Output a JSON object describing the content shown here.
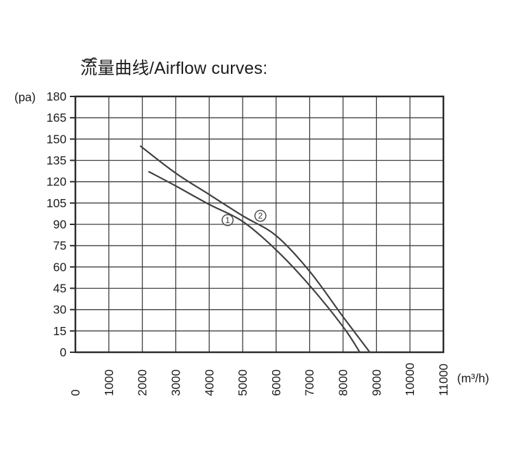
{
  "title": "流量曲线/Airflow curves:",
  "chart_data": {
    "type": "line",
    "title": "流量曲线/Airflow curves:",
    "xlabel": "(m³/h)",
    "ylabel": "(pa)",
    "xlim": [
      0,
      11000
    ],
    "ylim": [
      0,
      180
    ],
    "x_ticks": [
      "0",
      "1000",
      "2000",
      "3000",
      "4000",
      "5000",
      "6000",
      "7000",
      "8000",
      "9000",
      "10000",
      "11000"
    ],
    "y_ticks": [
      "0",
      "15",
      "30",
      "45",
      "60",
      "75",
      "90",
      "105",
      "120",
      "135",
      "150",
      "165",
      "180"
    ],
    "x_tick_rotation": -90,
    "grid": true,
    "legend_position": "none",
    "series": [
      {
        "name": "curve-1",
        "label": "1",
        "label_circled": "①",
        "label_pos": [
          4550,
          93
        ],
        "points": [
          [
            2200,
            127
          ],
          [
            3000,
            117
          ],
          [
            4000,
            104
          ],
          [
            5000,
            92
          ],
          [
            6000,
            72
          ],
          [
            7000,
            47
          ],
          [
            8000,
            18
          ],
          [
            8500,
            0
          ]
        ]
      },
      {
        "name": "curve-2",
        "label": "2",
        "label_circled": "②",
        "label_pos": [
          5530,
          96
        ],
        "points": [
          [
            1950,
            145
          ],
          [
            3000,
            126
          ],
          [
            4000,
            111
          ],
          [
            5000,
            96
          ],
          [
            6000,
            82
          ],
          [
            7000,
            57
          ],
          [
            8000,
            25
          ],
          [
            8800,
            0
          ]
        ]
      }
    ],
    "colors": {
      "curve": "#3f3f3f",
      "grid": "#3c3c3c",
      "border": "#2a2a2a",
      "text": "#1c1c1c",
      "background": "#ffffff"
    }
  }
}
